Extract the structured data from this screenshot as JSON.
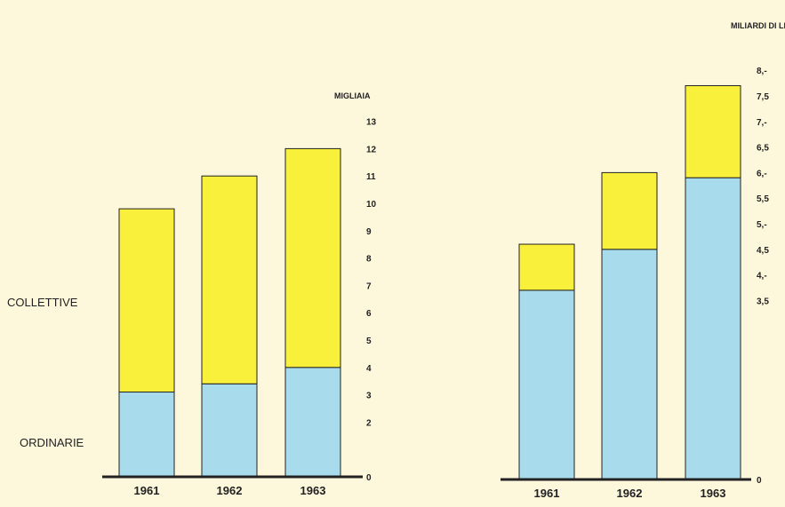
{
  "colors": {
    "ordinarie": "#a8dcec",
    "collettive": "#f9f03c",
    "background": "#fdf7dc",
    "axis": "#222222"
  },
  "legend": {
    "collettive": "COLLETTIVE",
    "ordinarie": "ORDINARIE"
  },
  "chart_data": [
    {
      "type": "bar",
      "stacked": true,
      "title": "",
      "ylabel": "MIGLIAIA",
      "categories": [
        "1961",
        "1962",
        "1963"
      ],
      "series": [
        {
          "name": "ORDINARIE",
          "values": [
            3.1,
            3.4,
            4.0
          ]
        },
        {
          "name": "COLLETTIVE",
          "values": [
            6.7,
            7.6,
            8.0
          ]
        }
      ],
      "yticks": [
        "13",
        "12",
        "11",
        "10",
        "9",
        "8",
        "7",
        "6",
        "5",
        "4",
        "3",
        "2",
        "0"
      ],
      "ylim": [
        0,
        13
      ]
    },
    {
      "type": "bar",
      "stacked": true,
      "title": "",
      "ylabel": "MILIARDI DI LIRE",
      "categories": [
        "1961",
        "1962",
        "1963"
      ],
      "series": [
        {
          "name": "ORDINARIE",
          "values": [
            3.7,
            4.5,
            5.9
          ]
        },
        {
          "name": "COLLETTIVE",
          "values": [
            0.9,
            1.5,
            1.8
          ]
        }
      ],
      "yticks": [
        "8,-",
        "7,5",
        "7,-",
        "6,5",
        "6,-",
        "5,5",
        "5,-",
        "4,5",
        "4,-",
        "3,5",
        "0"
      ],
      "ylim": [
        0,
        8
      ]
    }
  ]
}
